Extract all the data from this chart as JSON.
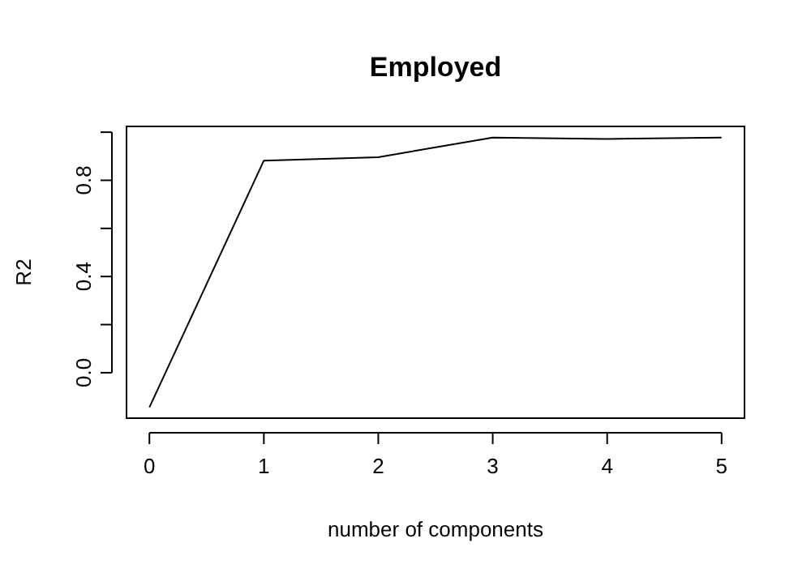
{
  "chart_data": {
    "type": "line",
    "title": "Employed",
    "xlabel": "number of components",
    "ylabel": "R2",
    "x": [
      0,
      1,
      2,
      3,
      4,
      5
    ],
    "series": [
      {
        "color": "#000000",
        "values": [
          -0.144,
          0.882,
          0.896,
          0.978,
          0.972,
          0.978
        ]
      }
    ],
    "xlim": [
      -0.2,
      5.2
    ],
    "xticks": [
      0,
      1,
      2,
      3,
      4,
      5
    ],
    "ylim": [
      -0.189,
      1.024
    ],
    "yticks": [
      {
        "value": 0,
        "label": "0.0"
      },
      {
        "value": 0.2,
        "label": null
      },
      0.4,
      {
        "value": 0.6,
        "label": null
      },
      0.8,
      {
        "value": 1.0,
        "label": null
      }
    ],
    "grid": false,
    "marker": "none",
    "line_style": "solid"
  }
}
